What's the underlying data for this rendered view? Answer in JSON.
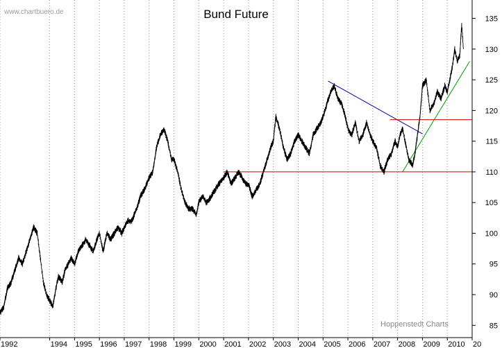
{
  "header": {
    "watermark": "www.chartbuero.de",
    "title": "Bund Future"
  },
  "footer": {
    "source": "Hoppenstedt Charts"
  },
  "chart_data": {
    "type": "line",
    "title": "Bund Future",
    "xlabel": "",
    "ylabel": "",
    "ylim": [
      83,
      138
    ],
    "xlim": [
      1992.0,
      2011.0
    ],
    "grid": true,
    "grid_style": "dotted-vertical",
    "y_ticks": [
      85,
      90,
      95,
      100,
      105,
      110,
      115,
      120,
      125,
      130,
      135
    ],
    "x_ticks": [
      "1992",
      "1994",
      "1995",
      "1996",
      "1997",
      "1998",
      "1999",
      "2000",
      "2001",
      "2002",
      "2003",
      "2004",
      "2005",
      "2006",
      "2007",
      "2008",
      "2009",
      "2010",
      "20"
    ],
    "x_tick_positions": [
      1992,
      1994,
      1995,
      1996,
      1997,
      1998,
      1999,
      2000,
      2001,
      2002,
      2003,
      2004,
      2005,
      2006,
      2007,
      2008,
      2009,
      2010,
      2011
    ],
    "series": [
      {
        "color": "#000000",
        "x": [
          1992.0,
          1992.15,
          1992.3,
          1992.45,
          1992.6,
          1992.75,
          1992.9,
          1993.05,
          1993.2,
          1993.35,
          1993.5,
          1993.62,
          1993.75,
          1993.87,
          1994.0,
          1994.12,
          1994.25,
          1994.35,
          1994.5,
          1994.62,
          1994.75,
          1994.87,
          1995.0,
          1995.15,
          1995.3,
          1995.45,
          1995.6,
          1995.75,
          1995.9,
          1996.0,
          1996.15,
          1996.3,
          1996.45,
          1996.6,
          1996.75,
          1996.9,
          1997.0,
          1997.15,
          1997.3,
          1997.5,
          1997.65,
          1997.8,
          1998.0,
          1998.15,
          1998.3,
          1998.45,
          1998.6,
          1998.75,
          1998.9,
          1999.0,
          1999.15,
          1999.3,
          1999.45,
          1999.6,
          1999.75,
          1999.9,
          2000.0,
          2000.15,
          2000.3,
          2000.5,
          2000.65,
          2000.8,
          2001.0,
          2001.15,
          2001.3,
          2001.45,
          2001.6,
          2001.75,
          2001.9,
          2002.0,
          2002.15,
          2002.3,
          2002.45,
          2002.6,
          2002.75,
          2002.9,
          2003.0,
          2003.1,
          2003.25,
          2003.4,
          2003.55,
          2003.7,
          2003.85,
          2004.0,
          2004.15,
          2004.3,
          2004.45,
          2004.6,
          2004.75,
          2004.9,
          2005.0,
          2005.15,
          2005.3,
          2005.45,
          2005.6,
          2005.75,
          2005.9,
          2006.0,
          2006.15,
          2006.3,
          2006.45,
          2006.6,
          2006.75,
          2006.9,
          2007.0,
          2007.15,
          2007.3,
          2007.45,
          2007.6,
          2007.75,
          2007.9,
          2008.0,
          2008.1,
          2008.2,
          2008.3,
          2008.45,
          2008.6,
          2008.7,
          2008.8,
          2008.9,
          2009.0,
          2009.15,
          2009.3,
          2009.45,
          2009.6,
          2009.75,
          2009.9,
          2010.0,
          2010.1,
          2010.2,
          2010.3,
          2010.4,
          2010.5,
          2010.58,
          2010.65
        ],
        "values": [
          87,
          88,
          91,
          92,
          94,
          96,
          95,
          97,
          99,
          101,
          100,
          96,
          92,
          90,
          89,
          88,
          91,
          93,
          92,
          94,
          95,
          96,
          95,
          97,
          98,
          99,
          98,
          97,
          99,
          100,
          97,
          100,
          99,
          100,
          101,
          100,
          101,
          102,
          102,
          104,
          106,
          107,
          109,
          110,
          114,
          116,
          117,
          115,
          112,
          112,
          110,
          107,
          105,
          104,
          104,
          103,
          105,
          106,
          105,
          106,
          107,
          108,
          109,
          110,
          108,
          109,
          110,
          109,
          108,
          108,
          106,
          107,
          108,
          110,
          112,
          114,
          115,
          119,
          117,
          114,
          112,
          113,
          115,
          116,
          115,
          114,
          113,
          116,
          117,
          118,
          119,
          121,
          123,
          124,
          122,
          121,
          119,
          117,
          116,
          118,
          115,
          116,
          118,
          116,
          115,
          114,
          111,
          110,
          112,
          113,
          115,
          114,
          116,
          117,
          115,
          112,
          111,
          113,
          116,
          119,
          124,
          125,
          120,
          121,
          123,
          122,
          124,
          123,
          125,
          127,
          130,
          128,
          129,
          134,
          130
        ]
      }
    ],
    "annotation_lines": [
      {
        "color": "#0000aa",
        "x": [
          2005.2,
          2009.0
        ],
        "y": [
          124.8,
          116.2
        ]
      },
      {
        "color": "#009900",
        "x": [
          2008.2,
          2010.9
        ],
        "y": [
          110.0,
          128.0
        ]
      },
      {
        "color": "#cc0000",
        "x": [
          2001.0,
          2011.0
        ],
        "y": [
          110.0,
          110.0
        ]
      },
      {
        "color": "#cc0000",
        "x": [
          2007.7,
          2011.0
        ],
        "y": [
          118.5,
          118.5
        ]
      }
    ]
  }
}
